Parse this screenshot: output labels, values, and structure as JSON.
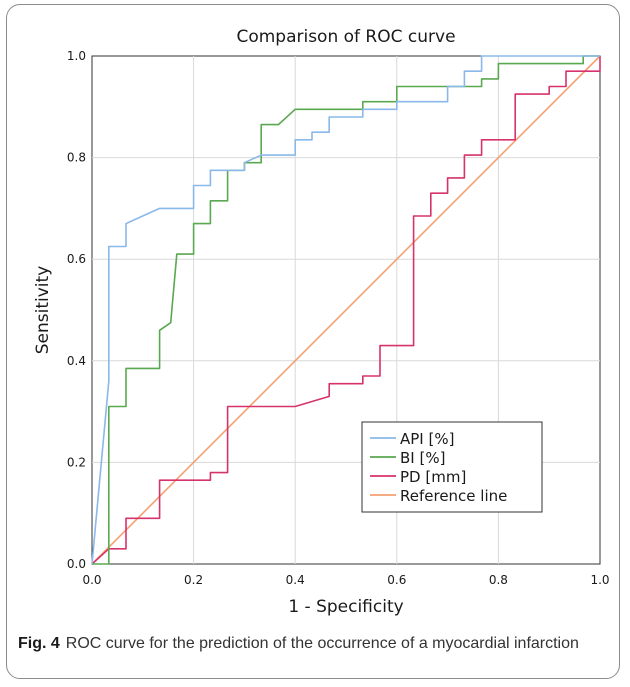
{
  "figure": {
    "caption_label": "Fig. 4",
    "caption_text": "ROC curve for the prediction of the occurrence of a myocardial infarction"
  },
  "chart_data": {
    "type": "line",
    "title": "Comparison of ROC curve",
    "xlabel": "1 - Specificity",
    "ylabel": "Sensitivity",
    "xlim": [
      0,
      1
    ],
    "ylim": [
      0,
      1
    ],
    "grid": true,
    "x_ticks": [
      "0.0",
      "0.2",
      "0.4",
      "0.6",
      "0.8",
      "1.0"
    ],
    "y_ticks": [
      "0.0",
      "0.2",
      "0.4",
      "0.6",
      "0.8",
      "1.0"
    ],
    "legend_position": "bottom-right",
    "series": [
      {
        "name": "API [%]",
        "color": "#8ab8ea",
        "points": [
          [
            0,
            0
          ],
          [
            0.033,
            0.36
          ],
          [
            0.033,
            0.625
          ],
          [
            0.067,
            0.625
          ],
          [
            0.067,
            0.67
          ],
          [
            0.133,
            0.7
          ],
          [
            0.2,
            0.7
          ],
          [
            0.2,
            0.745
          ],
          [
            0.233,
            0.745
          ],
          [
            0.233,
            0.775
          ],
          [
            0.3,
            0.775
          ],
          [
            0.3,
            0.79
          ],
          [
            0.333,
            0.805
          ],
          [
            0.4,
            0.805
          ],
          [
            0.4,
            0.835
          ],
          [
            0.433,
            0.835
          ],
          [
            0.433,
            0.85
          ],
          [
            0.467,
            0.85
          ],
          [
            0.467,
            0.88
          ],
          [
            0.533,
            0.88
          ],
          [
            0.533,
            0.895
          ],
          [
            0.6,
            0.895
          ],
          [
            0.6,
            0.91
          ],
          [
            0.7,
            0.91
          ],
          [
            0.7,
            0.94
          ],
          [
            0.733,
            0.94
          ],
          [
            0.733,
            0.97
          ],
          [
            0.767,
            0.97
          ],
          [
            0.767,
            1.0
          ],
          [
            1.0,
            1.0
          ]
        ]
      },
      {
        "name": "BI [%]",
        "color": "#5aa84f",
        "points": [
          [
            0,
            0
          ],
          [
            0.033,
            0
          ],
          [
            0.033,
            0.31
          ],
          [
            0.067,
            0.31
          ],
          [
            0.067,
            0.385
          ],
          [
            0.133,
            0.385
          ],
          [
            0.133,
            0.46
          ],
          [
            0.155,
            0.475
          ],
          [
            0.167,
            0.61
          ],
          [
            0.2,
            0.61
          ],
          [
            0.2,
            0.67
          ],
          [
            0.233,
            0.67
          ],
          [
            0.233,
            0.715
          ],
          [
            0.267,
            0.715
          ],
          [
            0.267,
            0.775
          ],
          [
            0.3,
            0.775
          ],
          [
            0.3,
            0.79
          ],
          [
            0.333,
            0.79
          ],
          [
            0.333,
            0.865
          ],
          [
            0.367,
            0.865
          ],
          [
            0.4,
            0.895
          ],
          [
            0.533,
            0.895
          ],
          [
            0.533,
            0.91
          ],
          [
            0.6,
            0.91
          ],
          [
            0.6,
            0.94
          ],
          [
            0.767,
            0.94
          ],
          [
            0.767,
            0.955
          ],
          [
            0.8,
            0.955
          ],
          [
            0.8,
            0.985
          ],
          [
            0.967,
            0.985
          ],
          [
            0.967,
            1.0
          ],
          [
            1.0,
            1.0
          ]
        ]
      },
      {
        "name": "PD [mm]",
        "color": "#d6336c",
        "points": [
          [
            0,
            0
          ],
          [
            0.033,
            0.03
          ],
          [
            0.067,
            0.03
          ],
          [
            0.067,
            0.09
          ],
          [
            0.133,
            0.09
          ],
          [
            0.133,
            0.165
          ],
          [
            0.233,
            0.165
          ],
          [
            0.233,
            0.18
          ],
          [
            0.267,
            0.18
          ],
          [
            0.267,
            0.31
          ],
          [
            0.4,
            0.31
          ],
          [
            0.4,
            0.31
          ],
          [
            0.467,
            0.33
          ],
          [
            0.467,
            0.355
          ],
          [
            0.533,
            0.355
          ],
          [
            0.533,
            0.37
          ],
          [
            0.567,
            0.37
          ],
          [
            0.567,
            0.43
          ],
          [
            0.633,
            0.43
          ],
          [
            0.633,
            0.685
          ],
          [
            0.667,
            0.685
          ],
          [
            0.667,
            0.73
          ],
          [
            0.7,
            0.73
          ],
          [
            0.7,
            0.76
          ],
          [
            0.733,
            0.76
          ],
          [
            0.733,
            0.805
          ],
          [
            0.767,
            0.805
          ],
          [
            0.767,
            0.835
          ],
          [
            0.833,
            0.835
          ],
          [
            0.833,
            0.925
          ],
          [
            0.9,
            0.925
          ],
          [
            0.9,
            0.94
          ],
          [
            0.933,
            0.94
          ],
          [
            0.933,
            0.97
          ],
          [
            1.0,
            0.97
          ],
          [
            1.0,
            1.0
          ]
        ]
      },
      {
        "name": "Reference line",
        "color": "#f5a071",
        "points": [
          [
            0,
            0
          ],
          [
            1,
            1
          ]
        ]
      }
    ]
  }
}
